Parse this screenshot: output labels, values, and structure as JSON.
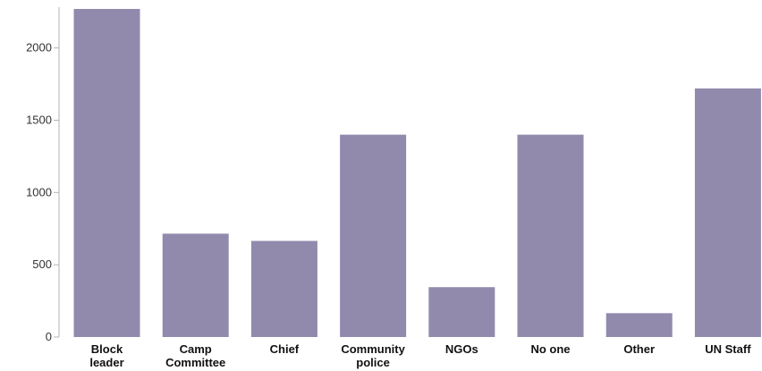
{
  "chart_data": {
    "type": "bar",
    "categories": [
      [
        "Block",
        "leader"
      ],
      [
        "Camp",
        "Committee"
      ],
      [
        "Chief"
      ],
      [
        "Community",
        "police"
      ],
      [
        "NGOs"
      ],
      [
        "No one"
      ],
      [
        "Other"
      ],
      [
        "UN Staff"
      ]
    ],
    "values": [
      2270,
      715,
      665,
      1400,
      345,
      1400,
      165,
      1720
    ],
    "yticks": [
      0,
      500,
      1000,
      1500,
      2000
    ],
    "ylim": [
      0,
      2270
    ],
    "title": "",
    "xlabel": "",
    "ylabel": "",
    "grid": false,
    "colors": {
      "bar": "#918aad",
      "axis": "#b3b3b3"
    }
  }
}
